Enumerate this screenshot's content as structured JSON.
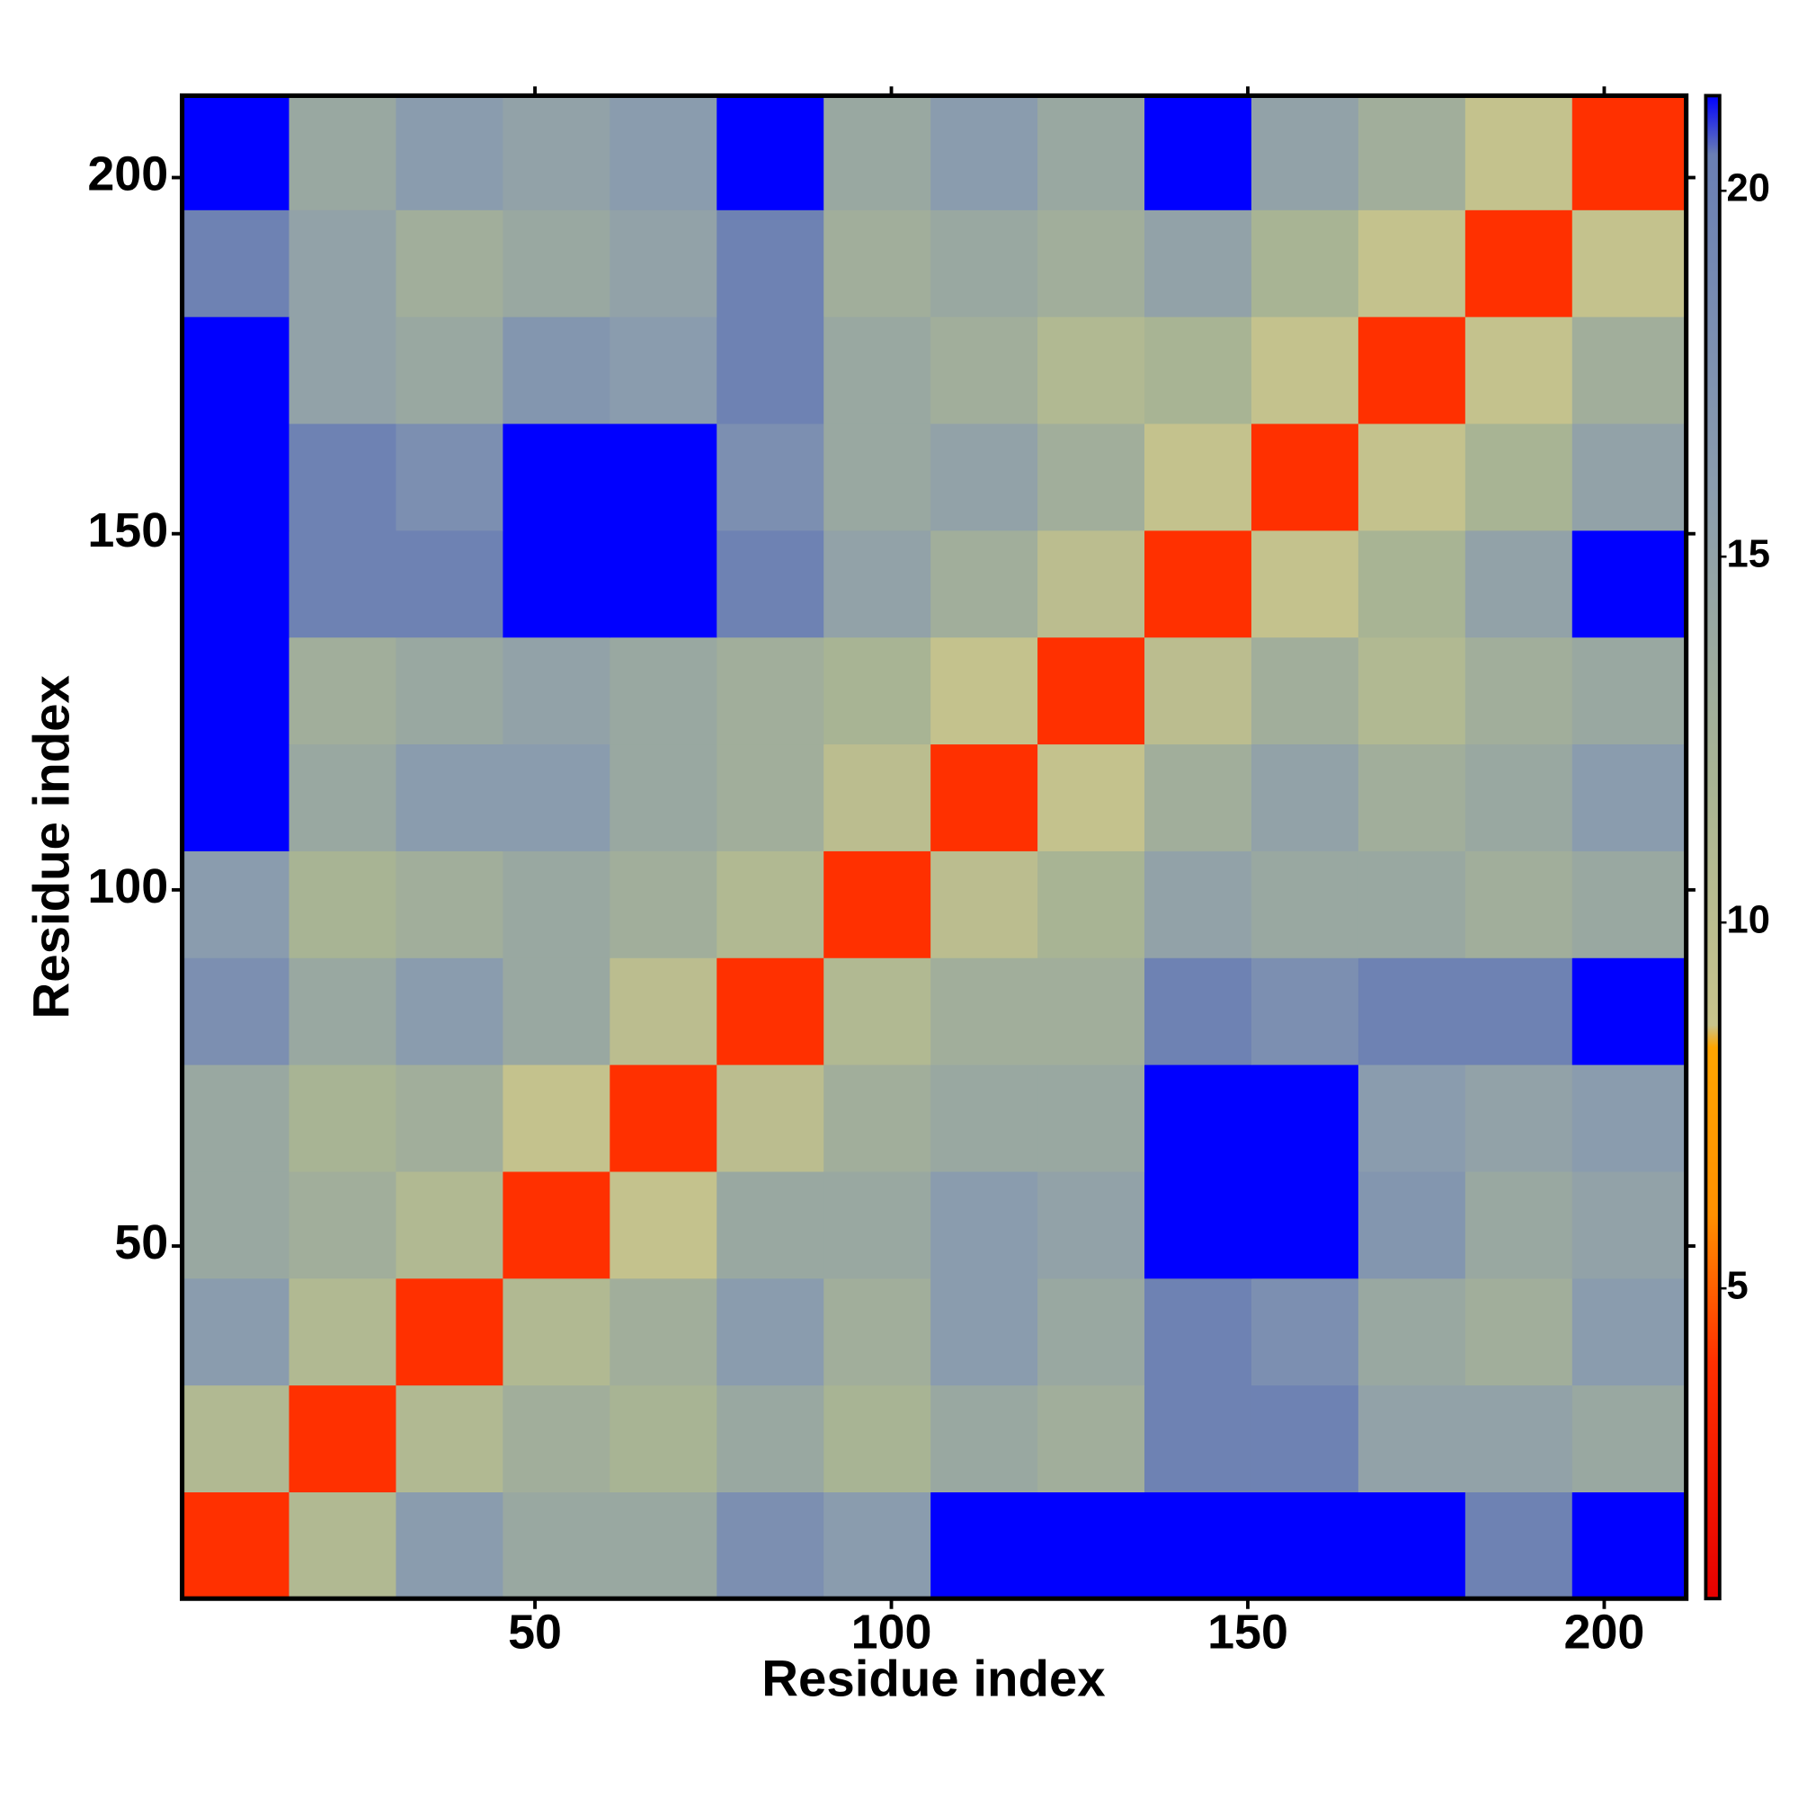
{
  "chart_data": {
    "type": "heatmap",
    "x_label": "Residue index",
    "y_label": "Residue index",
    "xlim": [
      0.5,
      211.5
    ],
    "ylim": [
      0.5,
      211.5
    ],
    "xticks": [
      50,
      100,
      150,
      200
    ],
    "yticks": [
      50,
      100,
      150,
      200
    ],
    "x_edges": [
      0.5,
      15.5,
      30.5,
      45.5,
      60.5,
      75.5,
      90.5,
      105.5,
      120.5,
      135.5,
      150.5,
      165.5,
      180.5,
      195.5,
      211.5
    ],
    "y_edges": [
      0.5,
      15.5,
      30.5,
      45.5,
      60.5,
      75.5,
      90.5,
      105.5,
      120.5,
      135.5,
      150.5,
      165.5,
      180.5,
      195.5,
      211.5
    ],
    "z": [
      [
        4,
        11,
        16,
        14,
        14,
        18,
        16,
        22,
        22,
        22,
        22,
        22,
        20,
        22
      ],
      [
        11,
        4,
        11,
        13,
        12,
        14,
        12,
        14,
        13,
        20,
        20,
        15,
        15,
        14
      ],
      [
        16,
        11,
        4,
        11,
        13,
        16,
        13,
        16,
        14,
        20,
        18,
        14,
        13,
        16
      ],
      [
        14,
        13,
        11,
        4,
        9,
        14,
        14,
        16,
        15,
        22,
        22,
        17,
        14,
        15
      ],
      [
        14,
        12,
        13,
        9,
        4,
        10,
        13,
        14,
        14,
        22,
        22,
        16,
        15,
        16
      ],
      [
        18,
        14,
        16,
        14,
        10,
        4,
        11,
        13,
        13,
        20,
        18,
        20,
        20,
        22
      ],
      [
        16,
        12,
        13,
        14,
        13,
        11,
        4,
        10,
        12,
        15,
        14,
        14,
        13,
        14
      ],
      [
        22,
        14,
        16,
        16,
        14,
        13,
        10,
        4,
        9,
        13,
        15,
        13,
        14,
        16
      ],
      [
        22,
        13,
        14,
        15,
        14,
        13,
        12,
        9,
        4,
        10,
        13,
        11,
        13,
        14
      ],
      [
        22,
        20,
        20,
        22,
        22,
        20,
        15,
        13,
        10,
        4,
        9,
        12,
        15,
        22
      ],
      [
        22,
        20,
        18,
        22,
        22,
        18,
        14,
        15,
        13,
        9,
        4,
        9,
        12,
        15
      ],
      [
        22,
        15,
        14,
        17,
        16,
        20,
        14,
        13,
        11,
        12,
        9,
        4,
        9,
        13
      ],
      [
        20,
        15,
        13,
        14,
        15,
        20,
        13,
        14,
        13,
        15,
        12,
        9,
        4,
        9
      ],
      [
        22,
        14,
        16,
        15,
        16,
        22,
        14,
        16,
        14,
        22,
        15,
        13,
        9,
        4
      ]
    ],
    "colorbar": {
      "lim": [
        0.76,
        21.3
      ],
      "ticks": [
        5,
        10,
        15,
        20
      ],
      "stops": [
        {
          "value": 0.76,
          "color": "#e60000"
        },
        {
          "value": 4,
          "color": "#ff3000"
        },
        {
          "value": 6,
          "color": "#ff9000"
        },
        {
          "value": 8.3,
          "color": "#ffa500"
        },
        {
          "value": 8.6,
          "color": "#c8c48c"
        },
        {
          "value": 12,
          "color": "#a8b494"
        },
        {
          "value": 16,
          "color": "#8a9cae"
        },
        {
          "value": 20.5,
          "color": "#6a7fb4"
        },
        {
          "value": 21.3,
          "color": "#0000ff"
        }
      ]
    }
  }
}
